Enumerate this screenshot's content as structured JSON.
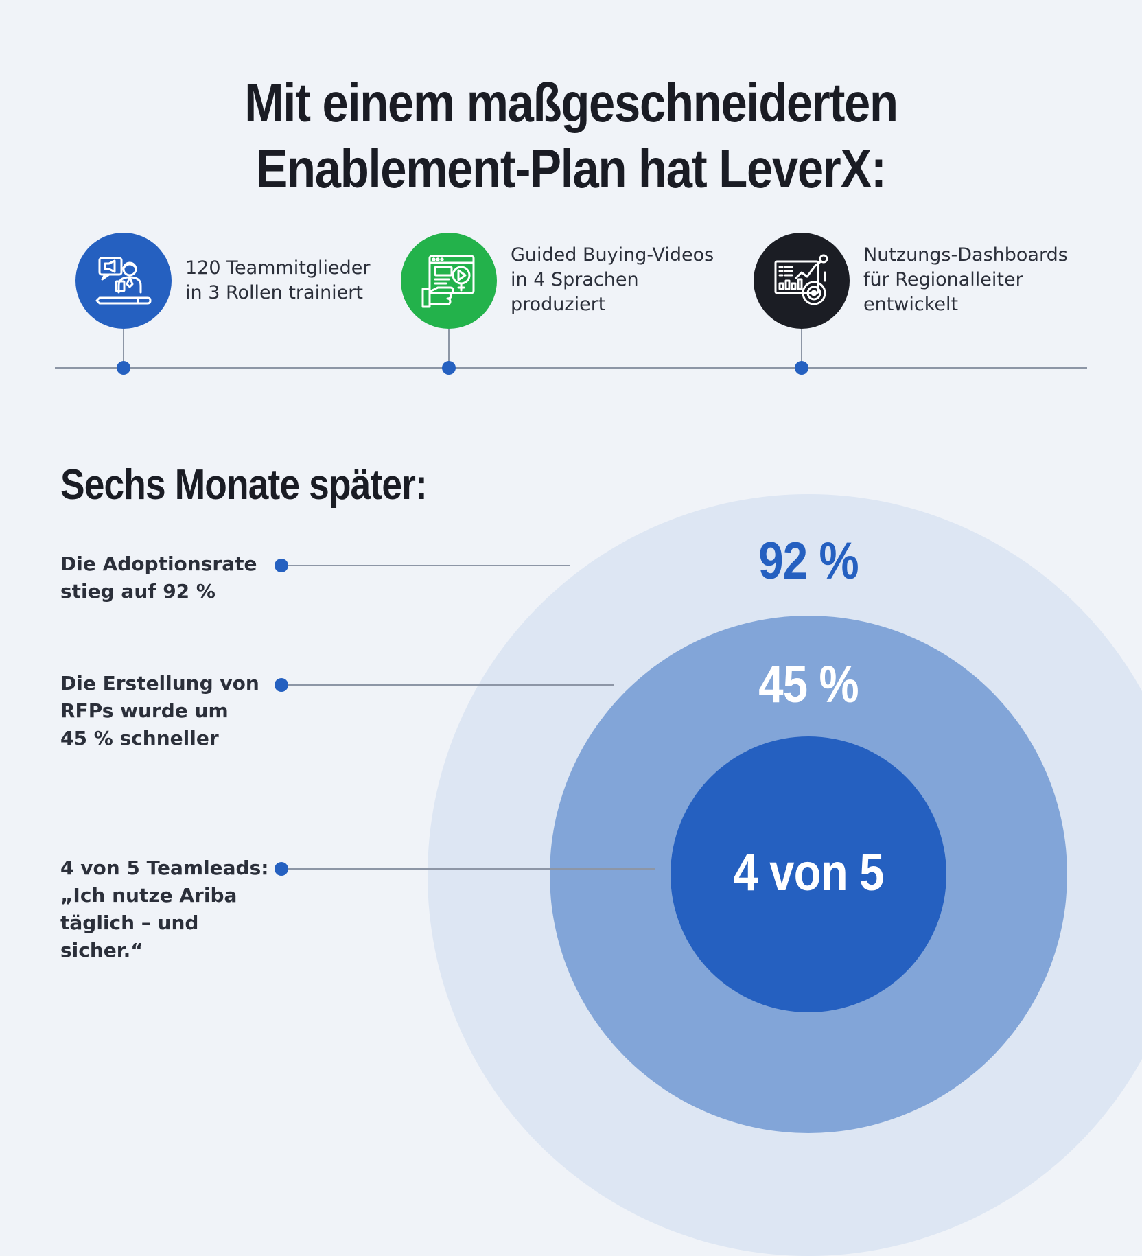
{
  "header": {
    "title_line1": "Mit einem maßgeschneiderten",
    "title_line2": "Enablement-Plan hat LeverX:"
  },
  "steps": [
    {
      "icon": "trainer-presentation-icon",
      "color": "#2560c0",
      "label": "120 Teammitglieder\nin 3 Rollen trainiert"
    },
    {
      "icon": "video-click-icon",
      "color": "#23b24b",
      "label": "Guided Buying-Videos\nin 4 Sprachen\nproduziert"
    },
    {
      "icon": "analytics-dashboard-icon",
      "color": "#1b1d24",
      "label": "Nutzungs-Dashboards\nfür Regionalleiter\nentwickelt"
    }
  ],
  "results": {
    "subtitle": "Sechs Monate später:",
    "items": [
      {
        "text": "Die Adoptionsrate\nstieg auf 92 %",
        "value": "92 %"
      },
      {
        "text": "Die Erstellung von\nRFPs wurde um\n45 % schneller",
        "value": "45 %"
      },
      {
        "text": "4 von 5 Teamleads:\n„Ich nutze Ariba\ntäglich – und sicher.“",
        "value": "4 von 5"
      }
    ]
  },
  "colors": {
    "background": "#f0f3f8",
    "accent_blue": "#2560c0",
    "accent_green": "#23b24b",
    "dark": "#1b1d24",
    "ring_outer": "#dde6f3",
    "ring_middle": "#82a5d8",
    "ring_inner": "#2560c0"
  }
}
